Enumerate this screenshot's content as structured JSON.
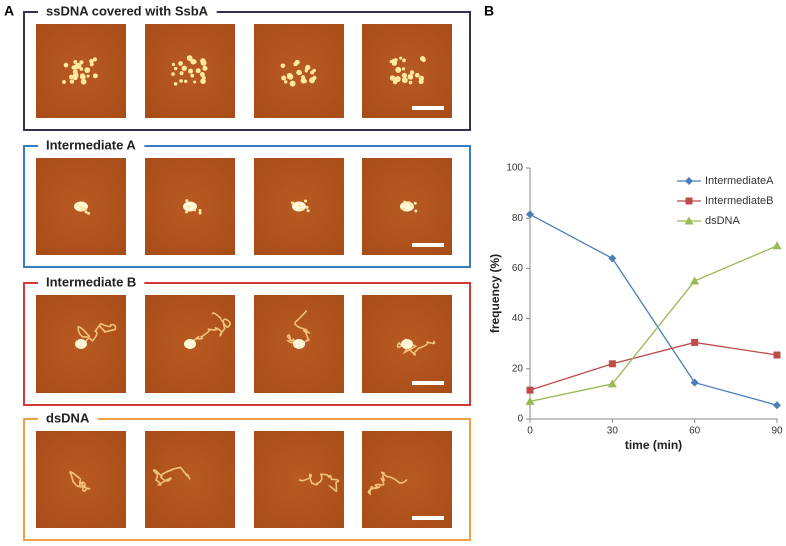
{
  "panel_labels": {
    "left": "A",
    "right": "B"
  },
  "groups": [
    {
      "title": "ssDNA covered with SsbA",
      "color": "#33334f"
    },
    {
      "title": "Intermediate A",
      "color": "#3a7cc0"
    },
    {
      "title": "Intermediate B",
      "color": "#d23a3a"
    },
    {
      "title": "dsDNA",
      "color": "#f0a048"
    }
  ],
  "chart_data": {
    "type": "line",
    "x": [
      0,
      30,
      60,
      90
    ],
    "xlim": [
      0,
      90
    ],
    "xticks": [
      0,
      30,
      60,
      90
    ],
    "ylim": [
      0,
      100
    ],
    "yticks": [
      0,
      20,
      40,
      60,
      80,
      100
    ],
    "x_label": "time (min)",
    "y_label": "frequency  (%)",
    "legend": "top-right",
    "series": [
      {
        "name": "IntermediateA",
        "color": "#4a7ebb",
        "marker": "diamond",
        "values": [
          81.5,
          64,
          14.5,
          5.5
        ]
      },
      {
        "name": "IntermediateB",
        "color": "#be4b48",
        "marker": "square",
        "values": [
          11.5,
          22,
          30.5,
          25.5
        ]
      },
      {
        "name": "dsDNA",
        "color": "#98b954",
        "marker": "triangle",
        "values": [
          7,
          14,
          55,
          69
        ]
      }
    ]
  }
}
